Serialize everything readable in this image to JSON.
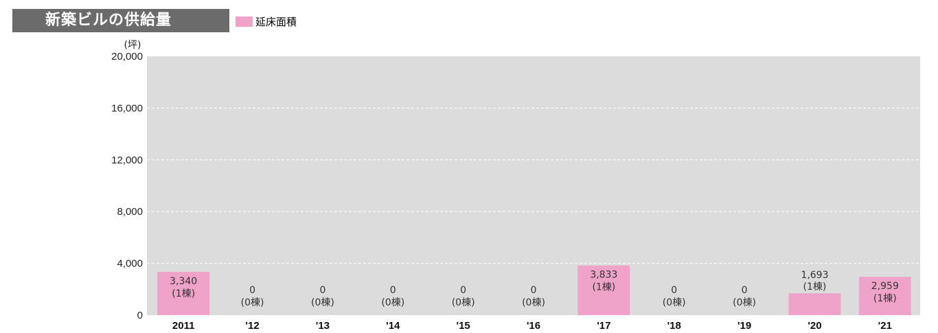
{
  "header": {
    "title": "新築ビルの供給量"
  },
  "legend": {
    "label": "延床面積",
    "color": "#efa3c8"
  },
  "chart_data": {
    "type": "bar",
    "y_unit": "(坪)",
    "ylim": [
      0,
      20000
    ],
    "y_ticks": [
      0,
      4000,
      8000,
      12000,
      16000,
      20000
    ],
    "y_tick_labels": [
      "0",
      "4,000",
      "8,000",
      "12,000",
      "16,000",
      "20,000"
    ],
    "grid": "dashed-horizontal",
    "plot_background": "#dcdcdc",
    "bar_color": "#efa3c8",
    "categories": [
      "2011",
      "'12",
      "'13",
      "'14",
      "'15",
      "'16",
      "'17",
      "'18",
      "'19",
      "'20",
      "'21"
    ],
    "series": [
      {
        "name": "延床面積",
        "values": [
          3340,
          0,
          0,
          0,
          0,
          0,
          3833,
          0,
          0,
          1693,
          2959
        ],
        "value_labels": [
          "3,340",
          "0",
          "0",
          "0",
          "0",
          "0",
          "3,833",
          "0",
          "0",
          "1,693",
          "2,959"
        ],
        "count_labels": [
          "(1棟)",
          "(0棟)",
          "(0棟)",
          "(0棟)",
          "(0棟)",
          "(0棟)",
          "(1棟)",
          "(0棟)",
          "(0棟)",
          "(1棟)",
          "(1棟)"
        ]
      }
    ]
  }
}
